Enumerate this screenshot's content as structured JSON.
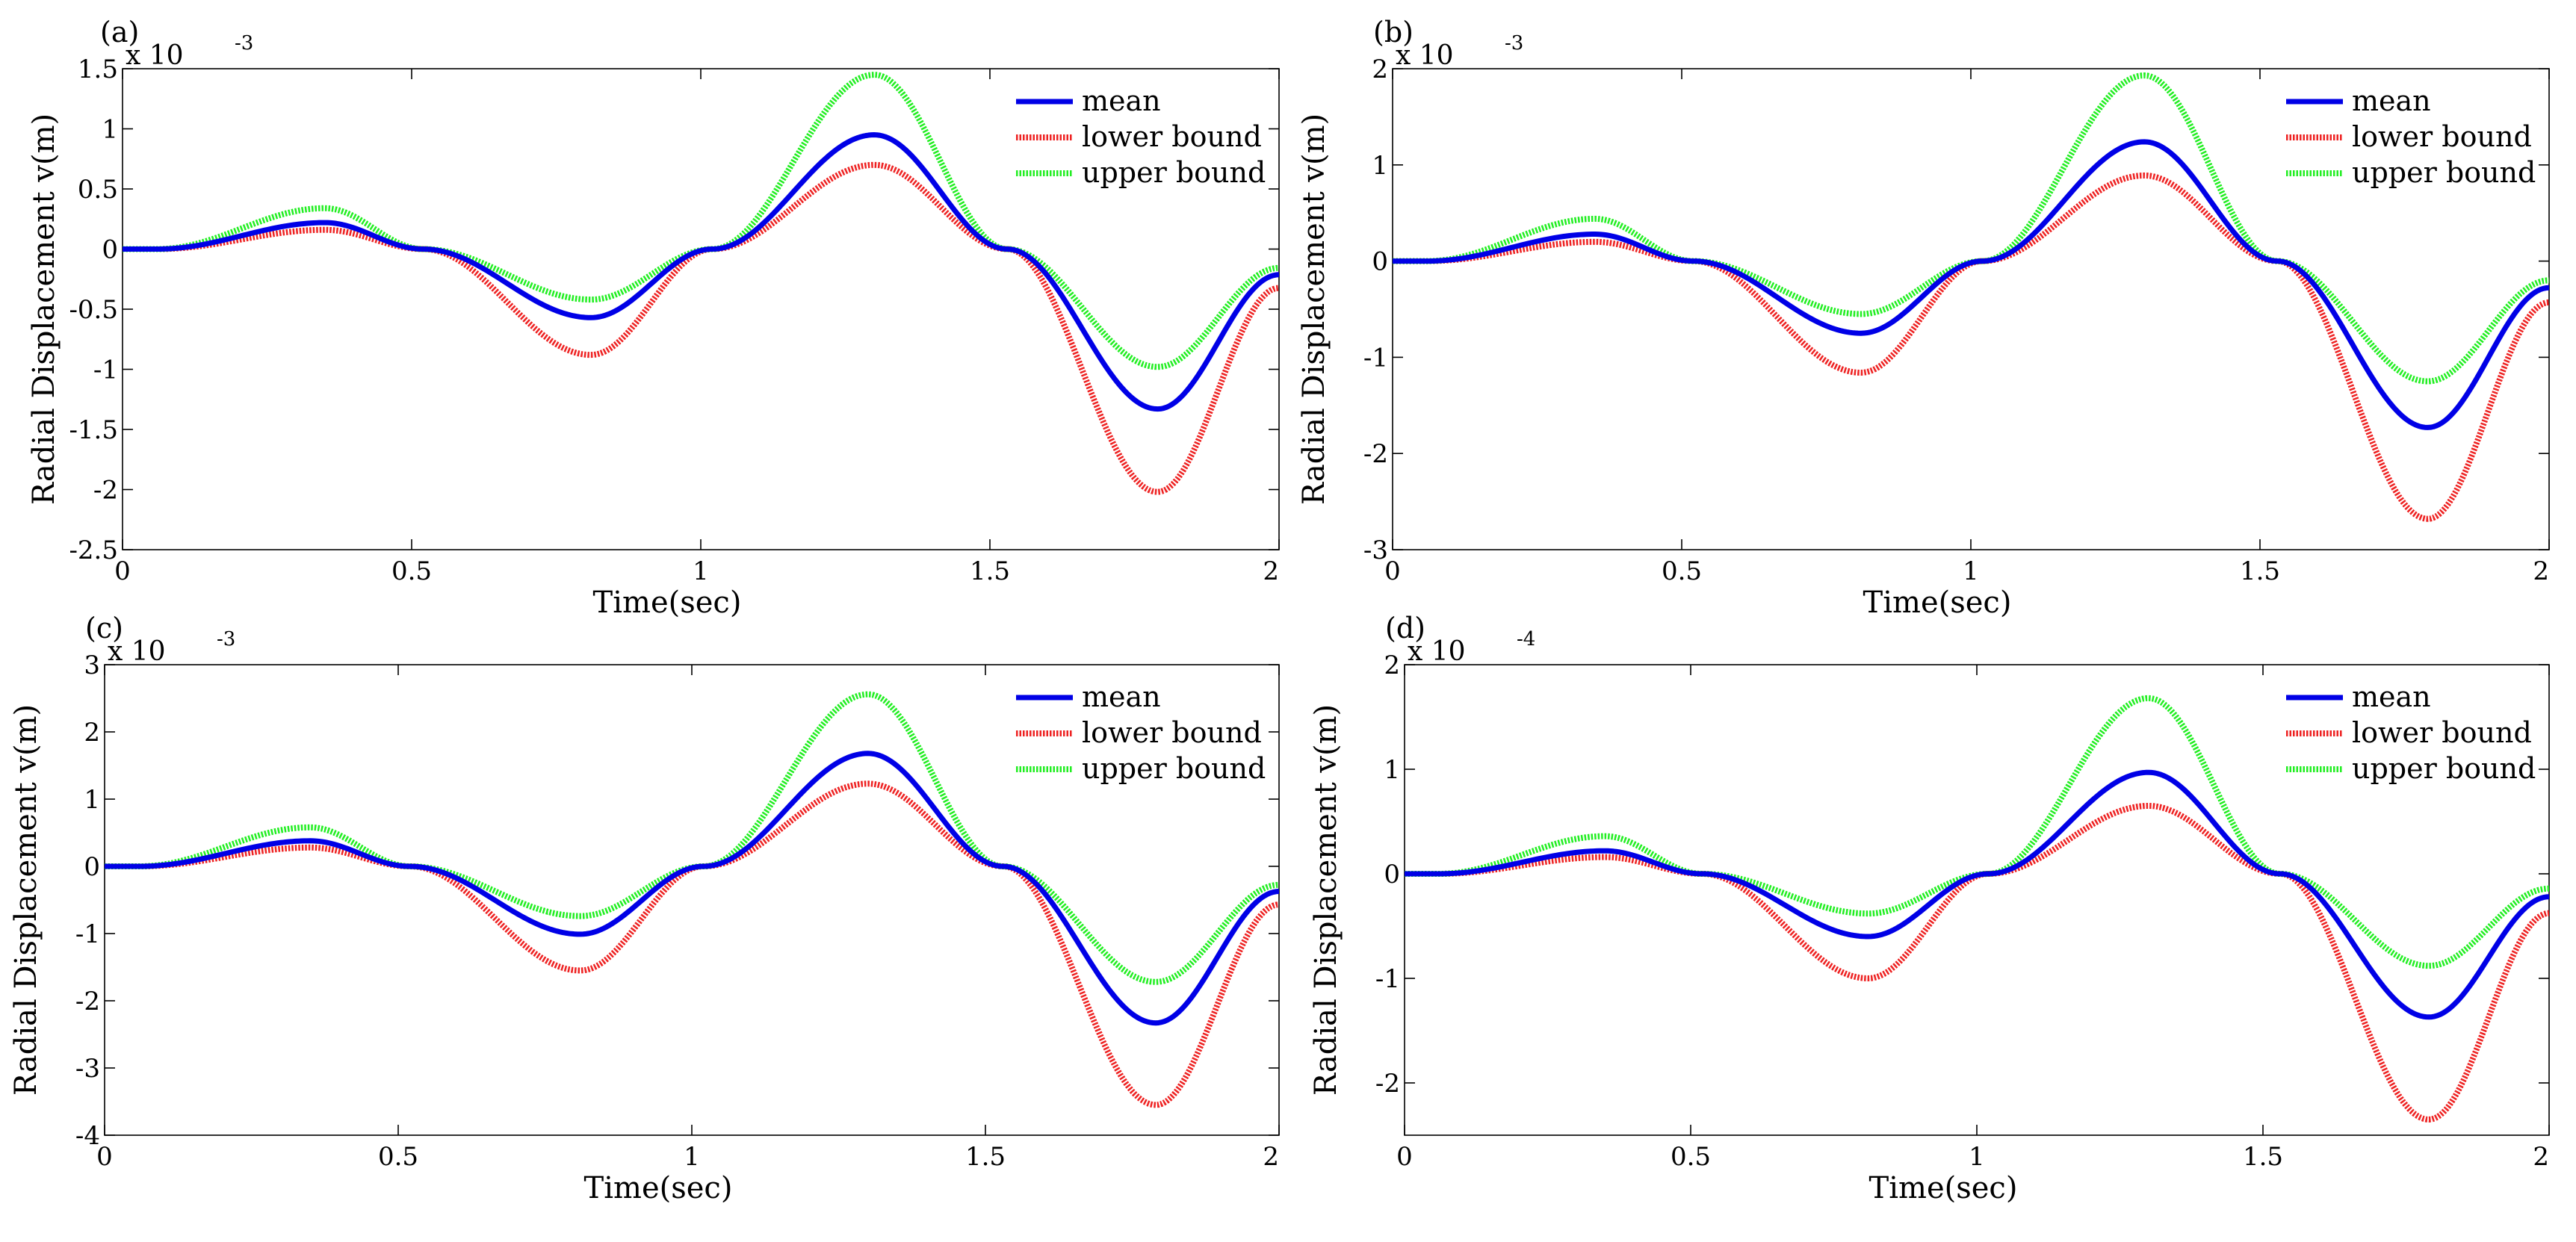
{
  "chart_data": [
    {
      "type": "line",
      "panel_label": "(a)",
      "scale_prefix": "x 10",
      "scale_exponent": "-3",
      "xlabel": "Time(sec)",
      "ylabel": "Radial Displacement v(m)",
      "xlim": [
        0,
        2
      ],
      "ylim": [
        -2.5,
        1.5
      ],
      "xticks": [
        0,
        0.5,
        1,
        1.5,
        2
      ],
      "xtick_labels": [
        "0",
        "0.5",
        "1",
        "1.5",
        "2"
      ],
      "yticks": [
        -2.5,
        -2,
        -1.5,
        -1,
        -0.5,
        0,
        0.5,
        1,
        1.5
      ],
      "ytick_labels": [
        "-2.5",
        "-2",
        "-1.5",
        "-1",
        "-0.5",
        "0",
        "0.5",
        "1",
        "1.5"
      ],
      "legend_position": "top-right",
      "series": [
        {
          "name": "mean",
          "color": "#0000e6",
          "style": "solid",
          "peak1": 0.22,
          "trough1": -0.57,
          "peak2": 0.95,
          "trough2": -1.33
        },
        {
          "name": "lower bound",
          "color": "#ee2222",
          "style": "dotted",
          "peak1": 0.16,
          "trough1": -0.88,
          "peak2": 0.7,
          "trough2": -2.02
        },
        {
          "name": "upper bound",
          "color": "#22ee22",
          "style": "dotted",
          "peak1": 0.34,
          "trough1": -0.42,
          "peak2": 1.45,
          "trough2": -0.98
        }
      ]
    },
    {
      "type": "line",
      "panel_label": "(b)",
      "scale_prefix": "x 10",
      "scale_exponent": "-3",
      "xlabel": "Time(sec)",
      "ylabel": "Radial Displacement v(m)",
      "xlim": [
        0,
        2
      ],
      "ylim": [
        -3,
        2
      ],
      "xticks": [
        0,
        0.5,
        1,
        1.5,
        2
      ],
      "xtick_labels": [
        "0",
        "0.5",
        "1",
        "1.5",
        "2"
      ],
      "yticks": [
        -3,
        -2,
        -1,
        0,
        1,
        2
      ],
      "ytick_labels": [
        "-3",
        "-2",
        "-1",
        "0",
        "1",
        "2"
      ],
      "legend_position": "top-right",
      "series": [
        {
          "name": "mean",
          "color": "#0000e6",
          "style": "solid",
          "peak1": 0.28,
          "trough1": -0.75,
          "peak2": 1.24,
          "trough2": -1.73
        },
        {
          "name": "lower bound",
          "color": "#ee2222",
          "style": "dotted",
          "peak1": 0.2,
          "trough1": -1.16,
          "peak2": 0.89,
          "trough2": -2.68
        },
        {
          "name": "upper bound",
          "color": "#22ee22",
          "style": "dotted",
          "peak1": 0.44,
          "trough1": -0.55,
          "peak2": 1.93,
          "trough2": -1.25
        }
      ]
    },
    {
      "type": "line",
      "panel_label": "(c)",
      "scale_prefix": "x 10",
      "scale_exponent": "-3",
      "xlabel": "Time(sec)",
      "ylabel": "Radial Displacement v(m)",
      "xlim": [
        0,
        2
      ],
      "ylim": [
        -4,
        3
      ],
      "xticks": [
        0,
        0.5,
        1,
        1.5,
        2
      ],
      "xtick_labels": [
        "0",
        "0.5",
        "1",
        "1.5",
        "2"
      ],
      "yticks": [
        -4,
        -3,
        -2,
        -1,
        0,
        1,
        2,
        3
      ],
      "ytick_labels": [
        "-4",
        "-3",
        "-2",
        "-1",
        "0",
        "1",
        "2",
        "3"
      ],
      "legend_position": "top-right",
      "series": [
        {
          "name": "mean",
          "color": "#0000e6",
          "style": "solid",
          "peak1": 0.38,
          "trough1": -1.01,
          "peak2": 1.68,
          "trough2": -2.33
        },
        {
          "name": "lower bound",
          "color": "#ee2222",
          "style": "dotted",
          "peak1": 0.28,
          "trough1": -1.55,
          "peak2": 1.23,
          "trough2": -3.55
        },
        {
          "name": "upper bound",
          "color": "#22ee22",
          "style": "dotted",
          "peak1": 0.58,
          "trough1": -0.74,
          "peak2": 2.56,
          "trough2": -1.72
        }
      ]
    },
    {
      "type": "line",
      "panel_label": "(d)",
      "scale_prefix": "x 10",
      "scale_exponent": "-4",
      "xlabel": "Time(sec)",
      "ylabel": "Radial Displacement v(m)",
      "xlim": [
        0,
        2
      ],
      "ylim": [
        -2.5,
        2
      ],
      "xticks": [
        0,
        0.5,
        1,
        1.5,
        2
      ],
      "xtick_labels": [
        "0",
        "0.5",
        "1",
        "1.5",
        "2"
      ],
      "yticks": [
        -2,
        -1,
        0,
        1,
        2
      ],
      "ytick_labels": [
        "-2",
        "-1",
        "0",
        "1",
        "2"
      ],
      "legend_position": "top-right",
      "series": [
        {
          "name": "mean",
          "color": "#0000e6",
          "style": "solid",
          "peak1": 0.22,
          "trough1": -0.6,
          "peak2": 0.97,
          "trough2": -1.37
        },
        {
          "name": "lower bound",
          "color": "#ee2222",
          "style": "dotted",
          "peak1": 0.16,
          "trough1": -1.0,
          "peak2": 0.65,
          "trough2": -2.35
        },
        {
          "name": "upper bound",
          "color": "#22ee22",
          "style": "dotted",
          "peak1": 0.36,
          "trough1": -0.38,
          "peak2": 1.68,
          "trough2": -0.88
        }
      ]
    }
  ]
}
